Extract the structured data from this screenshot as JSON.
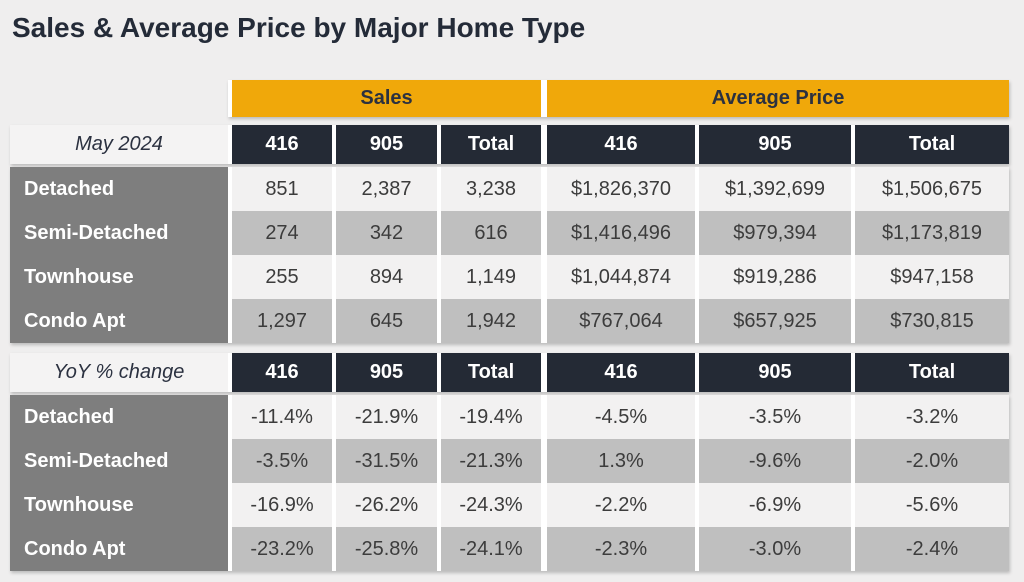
{
  "title": "Sales & Average Price by Major Home Type",
  "table": {
    "group_headers": [
      "Sales",
      "Average Price"
    ],
    "column_headers": [
      "416",
      "905",
      "Total"
    ],
    "sections": [
      {
        "label": "May 2024",
        "rows": [
          {
            "name": "Detached",
            "sales": [
              "851",
              "2,387",
              "3,238"
            ],
            "avg_price": [
              "$1,826,370",
              "$1,392,699",
              "$1,506,675"
            ]
          },
          {
            "name": "Semi-Detached",
            "sales": [
              "274",
              "342",
              "616"
            ],
            "avg_price": [
              "$1,416,496",
              "$979,394",
              "$1,173,819"
            ]
          },
          {
            "name": "Townhouse",
            "sales": [
              "255",
              "894",
              "1,149"
            ],
            "avg_price": [
              "$1,044,874",
              "$919,286",
              "$947,158"
            ]
          },
          {
            "name": "Condo Apt",
            "sales": [
              "1,297",
              "645",
              "1,942"
            ],
            "avg_price": [
              "$767,064",
              "$657,925",
              "$730,815"
            ]
          }
        ]
      },
      {
        "label": "YoY % change",
        "rows": [
          {
            "name": "Detached",
            "sales": [
              "-11.4%",
              "-21.9%",
              "-19.4%"
            ],
            "avg_price": [
              "-4.5%",
              "-3.5%",
              "-3.2%"
            ]
          },
          {
            "name": "Semi-Detached",
            "sales": [
              "-3.5%",
              "-31.5%",
              "-21.3%"
            ],
            "avg_price": [
              "1.3%",
              "-9.6%",
              "-2.0%"
            ]
          },
          {
            "name": "Townhouse",
            "sales": [
              "-16.9%",
              "-26.2%",
              "-24.3%"
            ],
            "avg_price": [
              "-2.2%",
              "-6.9%",
              "-5.6%"
            ]
          },
          {
            "name": "Condo Apt",
            "sales": [
              "-23.2%",
              "-25.8%",
              "-24.1%"
            ],
            "avg_price": [
              "-2.3%",
              "-3.0%",
              "-2.4%"
            ]
          }
        ]
      }
    ]
  },
  "colors": {
    "accent_gold": "#F0A80A",
    "header_navy": "#242A35",
    "row_label_gray": "#7E7E7E",
    "row_light": "#F2F1F1",
    "row_shaded": "#BFBFBF",
    "background": "#EFEEEE",
    "title_text": "#242B38"
  },
  "chart_data": {
    "type": "table",
    "title": "Sales & Average Price by Major Home Type",
    "column_groups": [
      "Sales",
      "Average Price"
    ],
    "columns": [
      "416",
      "905",
      "Total"
    ],
    "sections": [
      {
        "label": "May 2024",
        "rows": [
          {
            "home_type": "Detached",
            "sales_416": 851,
            "sales_905": 2387,
            "sales_total": 3238,
            "avg_price_416": 1826370,
            "avg_price_905": 1392699,
            "avg_price_total": 1506675
          },
          {
            "home_type": "Semi-Detached",
            "sales_416": 274,
            "sales_905": 342,
            "sales_total": 616,
            "avg_price_416": 1416496,
            "avg_price_905": 979394,
            "avg_price_total": 1173819
          },
          {
            "home_type": "Townhouse",
            "sales_416": 255,
            "sales_905": 894,
            "sales_total": 1149,
            "avg_price_416": 1044874,
            "avg_price_905": 919286,
            "avg_price_total": 947158
          },
          {
            "home_type": "Condo Apt",
            "sales_416": 1297,
            "sales_905": 645,
            "sales_total": 1942,
            "avg_price_416": 767064,
            "avg_price_905": 657925,
            "avg_price_total": 730815
          }
        ]
      },
      {
        "label": "YoY % change",
        "rows": [
          {
            "home_type": "Detached",
            "sales_416_pct": -11.4,
            "sales_905_pct": -21.9,
            "sales_total_pct": -19.4,
            "avg_price_416_pct": -4.5,
            "avg_price_905_pct": -3.5,
            "avg_price_total_pct": -3.2
          },
          {
            "home_type": "Semi-Detached",
            "sales_416_pct": -3.5,
            "sales_905_pct": -31.5,
            "sales_total_pct": -21.3,
            "avg_price_416_pct": 1.3,
            "avg_price_905_pct": -9.6,
            "avg_price_total_pct": -2.0
          },
          {
            "home_type": "Townhouse",
            "sales_416_pct": -16.9,
            "sales_905_pct": -26.2,
            "sales_total_pct": -24.3,
            "avg_price_416_pct": -2.2,
            "avg_price_905_pct": -6.9,
            "avg_price_total_pct": -5.6
          },
          {
            "home_type": "Condo Apt",
            "sales_416_pct": -23.2,
            "sales_905_pct": -25.8,
            "sales_total_pct": -24.1,
            "avg_price_416_pct": -2.3,
            "avg_price_905_pct": -3.0,
            "avg_price_total_pct": -2.4
          }
        ]
      }
    ]
  }
}
